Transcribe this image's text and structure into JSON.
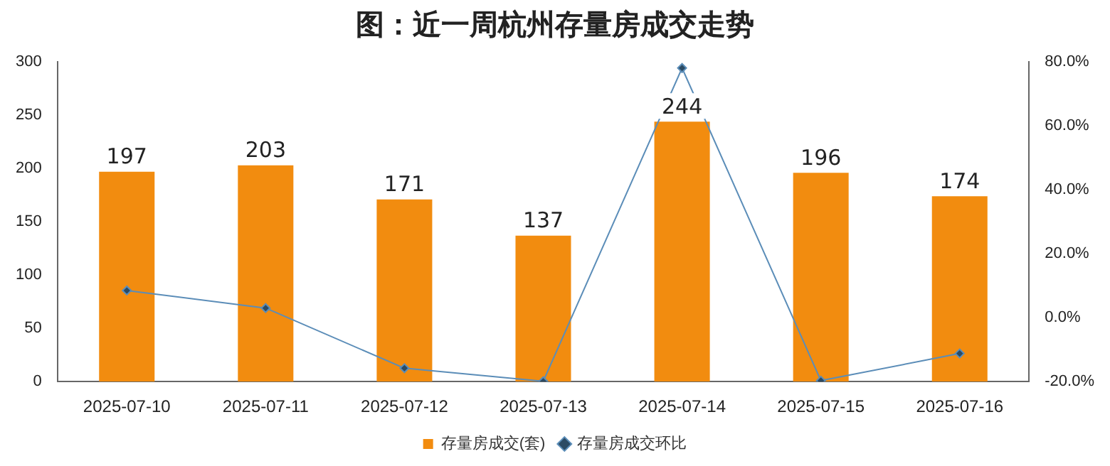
{
  "chart_data": {
    "type": "bar",
    "title": "图：近一周杭州存量房成交走势",
    "categories": [
      "2025-07-10",
      "2025-07-11",
      "2025-07-12",
      "2025-07-13",
      "2025-07-14",
      "2025-07-15",
      "2025-07-16"
    ],
    "series": [
      {
        "name": "存量房成交(套)",
        "color": "#f28c0f",
        "values": [
          197,
          203,
          171,
          137,
          244,
          196,
          174
        ],
        "value_labels": [
          "197",
          "203",
          "171",
          "137",
          "244",
          "196",
          "174"
        ]
      },
      {
        "name": "存量房成交环比",
        "type": "line",
        "axis": "y2",
        "color": "#5b8db8",
        "marker": "diamond",
        "line_style": "solid",
        "values": [
          8.5,
          3.0,
          -15.8,
          -19.9,
          78.1,
          -19.7,
          -11.2
        ]
      }
    ],
    "ylim": [
      0,
      300
    ],
    "yticks": [
      0,
      50,
      100,
      150,
      200,
      250,
      300
    ],
    "y2lim": [
      -20,
      80
    ],
    "y2ticks": [
      {
        "value": -20,
        "label": "-20.0%"
      },
      {
        "value": 0,
        "label": "0.0%"
      },
      {
        "value": 20,
        "label": "20.0%"
      },
      {
        "value": 40,
        "label": "40.0%"
      },
      {
        "value": 60,
        "label": "60.0%"
      },
      {
        "value": 80,
        "label": "80.0%"
      }
    ],
    "grid": false,
    "legend": "bottom"
  }
}
